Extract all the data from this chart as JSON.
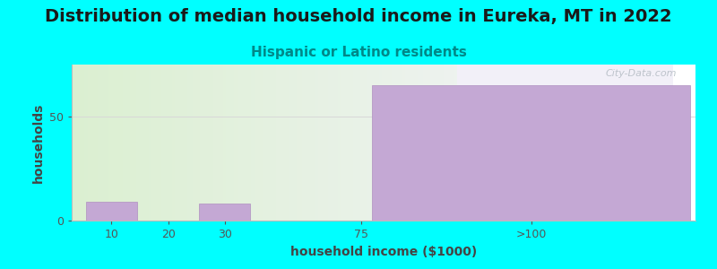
{
  "title": "Distribution of median household income in Eureka, MT in 2022",
  "subtitle": "Hispanic or Latino residents",
  "xlabel": "household income ($1000)",
  "ylabel": "households",
  "background_color": "#00FFFF",
  "plot_bg_green": "#dff0d8",
  "plot_bg_white": "#f5f5ff",
  "bar_color": "#c4a8d4",
  "bar_edge_color": "#b090c0",
  "categories": [
    "10",
    "20",
    "30",
    "75",
    ">100"
  ],
  "values": [
    9,
    0,
    8,
    0,
    65
  ],
  "yticks": [
    0,
    50
  ],
  "ylim": [
    0,
    75
  ],
  "title_fontsize": 14,
  "subtitle_fontsize": 11,
  "axis_label_fontsize": 10,
  "tick_fontsize": 9,
  "watermark_text": "City-Data.com",
  "watermark_color": "#b0b8c0",
  "grid_color": "#d8d8d8",
  "title_color": "#1a1a1a",
  "subtitle_color": "#008888",
  "axis_label_color": "#444444"
}
